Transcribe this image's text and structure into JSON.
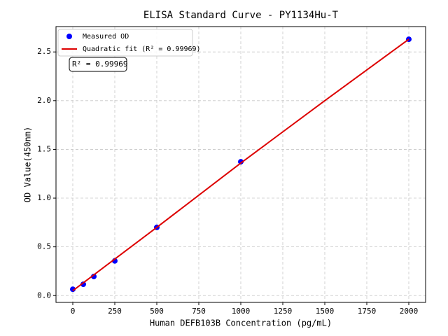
{
  "chart_data": {
    "type": "scatter",
    "title": "ELISA Standard Curve - PY1134Hu-T",
    "x_label": "Human DEFB103B Concentration (pg/mL)",
    "y_label": "OD Value(450nm)",
    "annotation": "R² = 0.99969",
    "series": [
      {
        "name": "Measured OD",
        "type": "scatter",
        "color": "#0000ff",
        "x": [
          0,
          62.5,
          125,
          250,
          500,
          1000,
          2000
        ],
        "values": [
          0.065,
          0.116,
          0.196,
          0.356,
          0.7,
          1.373,
          2.63
        ]
      },
      {
        "name": "Quadratic fit (R² = 0.99969)",
        "type": "line",
        "color": "#dd0000",
        "x": [
          0,
          500,
          1000,
          1500,
          2000
        ],
        "values": [
          0.05,
          0.7,
          1.36,
          2.0,
          2.63
        ]
      }
    ],
    "xlim": [
      -100,
      2100
    ],
    "ylim": [
      -0.07,
      2.76
    ],
    "xticks": [
      0,
      250,
      500,
      750,
      1000,
      1250,
      1500,
      1750,
      2000
    ],
    "yticks": [
      {
        "value": 0,
        "label": "0.0"
      },
      0.5,
      {
        "value": 1,
        "label": "1.0"
      },
      1.5,
      {
        "value": 2,
        "label": "2.0"
      },
      2.5
    ],
    "grid": true,
    "legend": "upper left"
  }
}
